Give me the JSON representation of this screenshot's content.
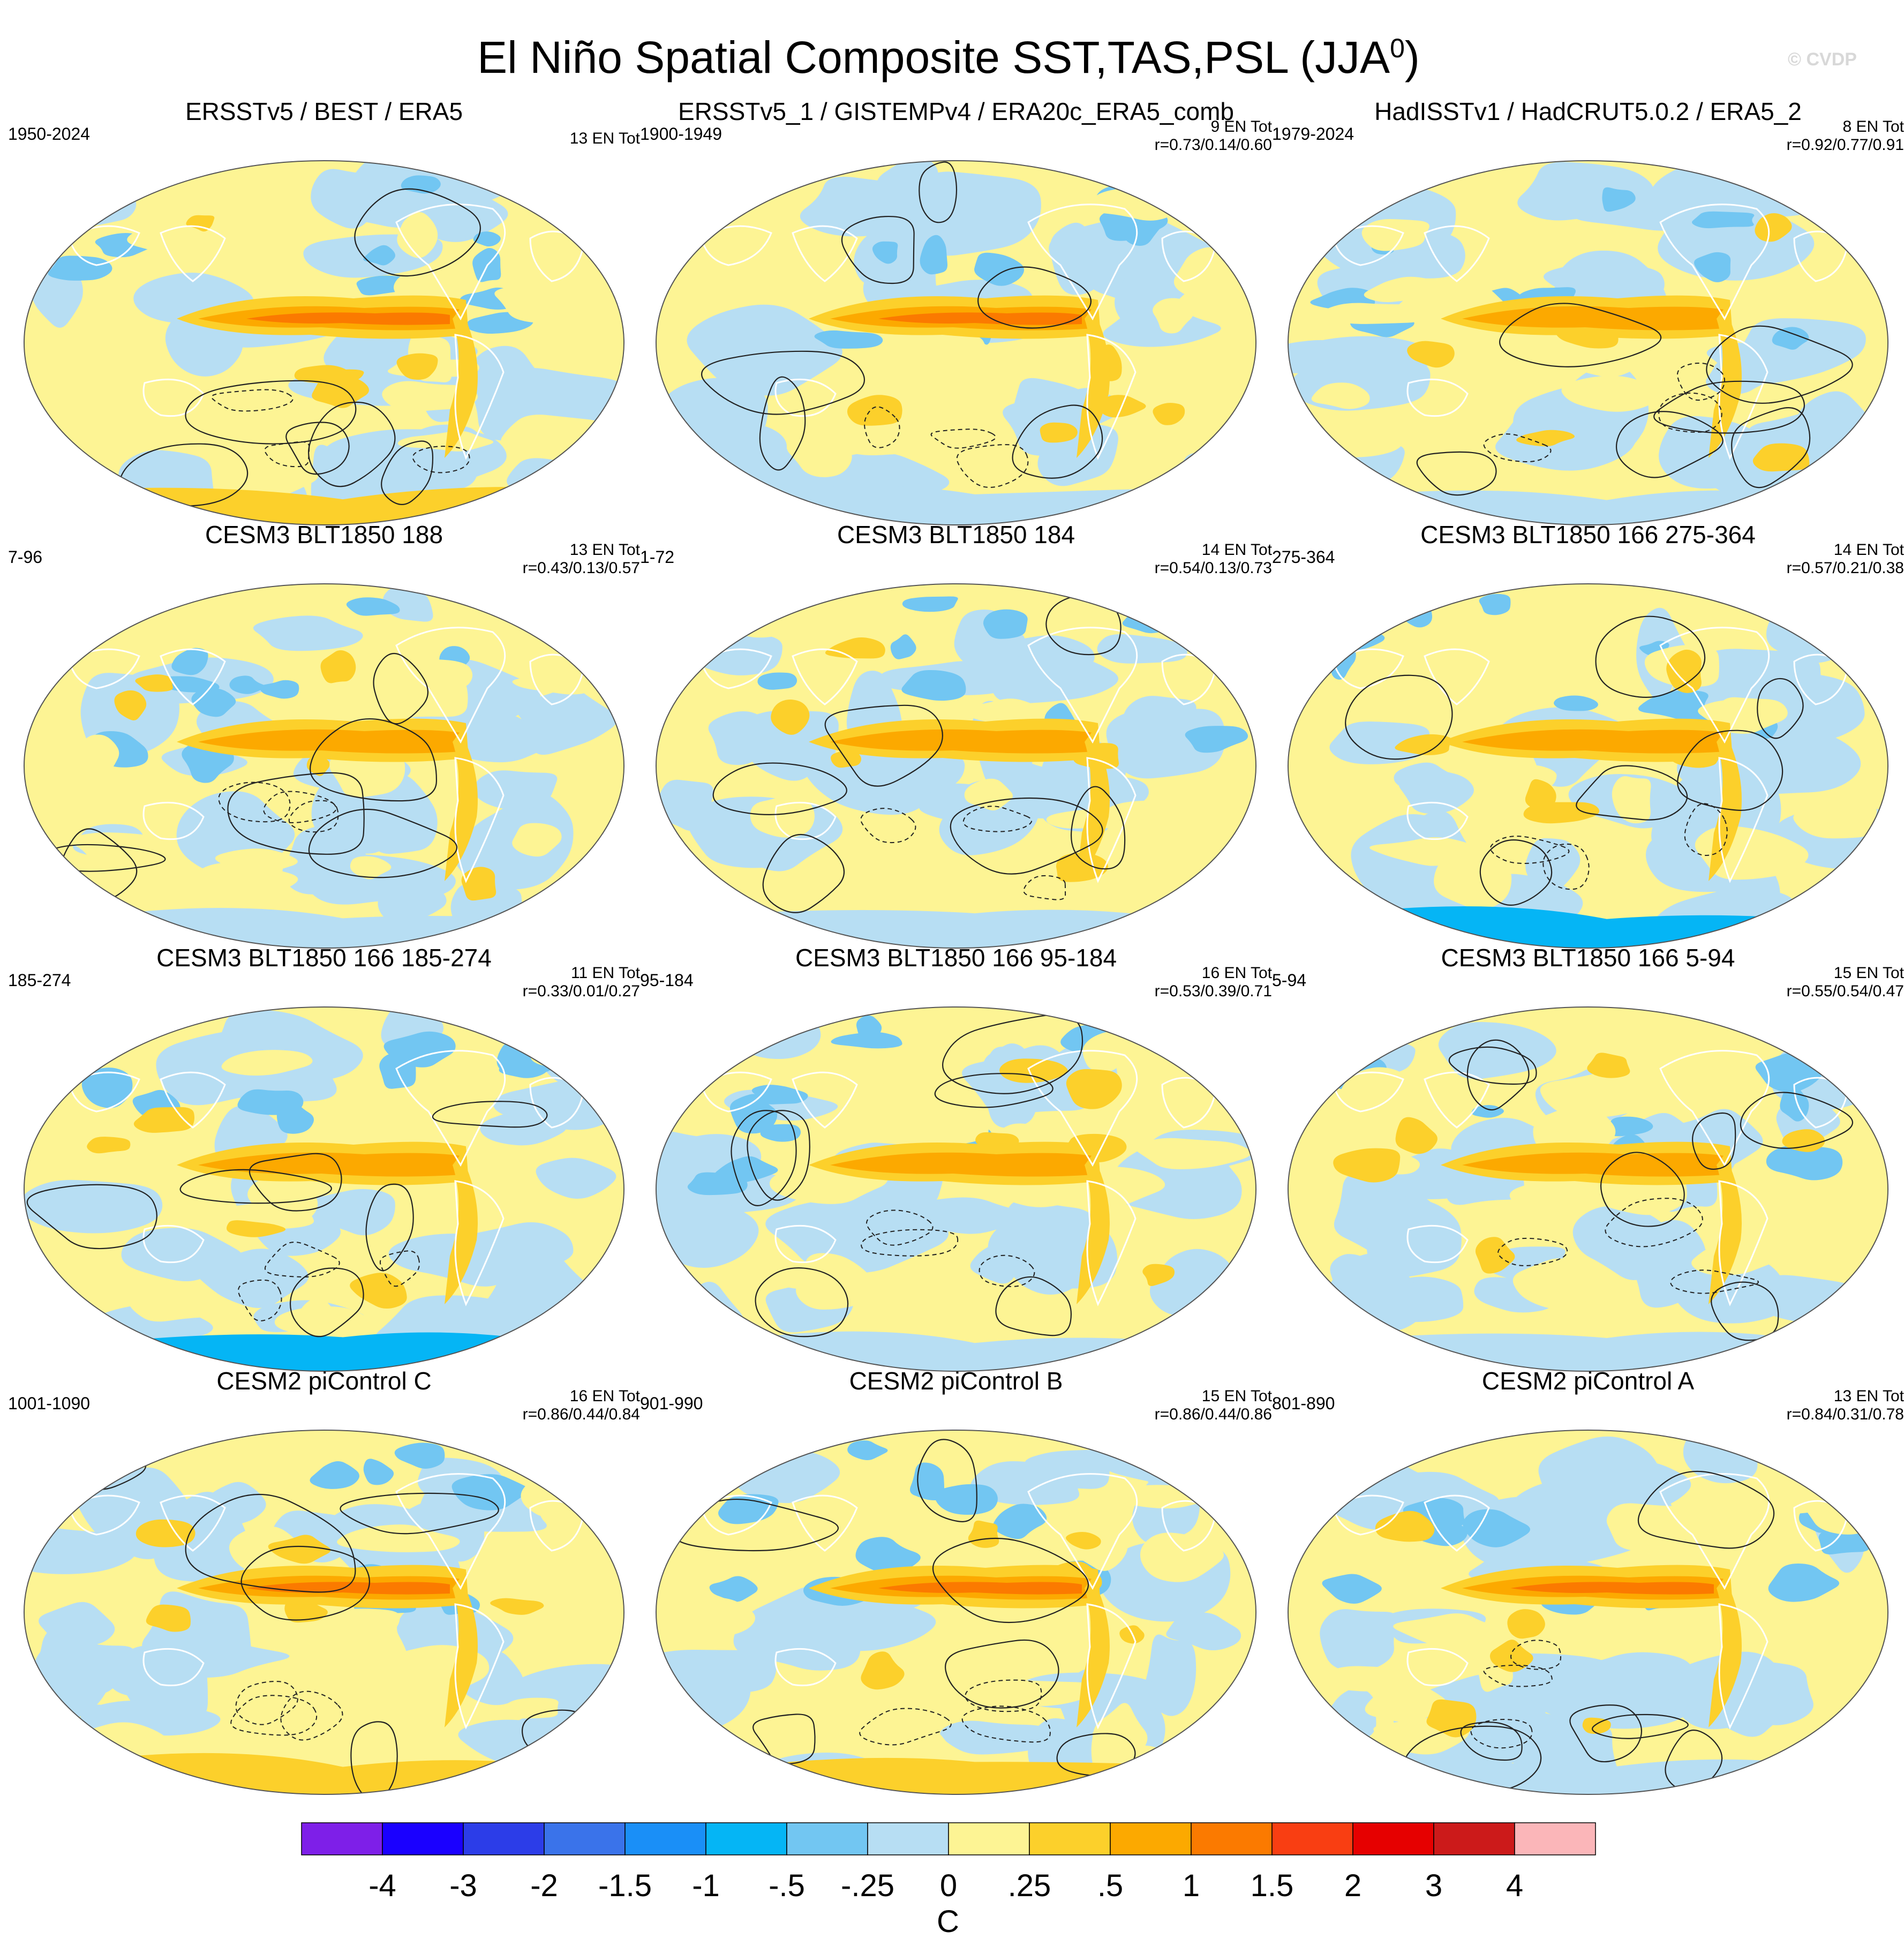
{
  "figure": {
    "title": "El Niño Spatial Composite SST,TAS,PSL (JJA",
    "title_superscript": "0",
    "title_close": ")",
    "credit": "© CVDP"
  },
  "panels": [
    {
      "title": "ERSSTv5 / BEST / ERA5",
      "years": "1950-2024",
      "count": "13 EN Tot",
      "r": "",
      "pattern": 0
    },
    {
      "title": "ERSSTv5_1 / GISTEMPv4 / ERA20c_ERA5_comb",
      "years": "1900-1949",
      "count": "9 EN Tot",
      "r": "r=0.73/0.14/0.60",
      "pattern": 1
    },
    {
      "title": "HadISSTv1 / HadCRUT5.0.2 / ERA5_2",
      "years": "1979-2024",
      "count": "8 EN Tot",
      "r": "r=0.92/0.77/0.91",
      "pattern": 2
    },
    {
      "title": "CESM3 BLT1850 188",
      "years": "7-96",
      "count": "13 EN Tot",
      "r": "r=0.43/0.13/0.57",
      "pattern": 3
    },
    {
      "title": "CESM3 BLT1850 184",
      "years": "1-72",
      "count": "14 EN Tot",
      "r": "r=0.54/0.13/0.73",
      "pattern": 4
    },
    {
      "title": "CESM3 BLT1850 166 275-364",
      "years": "275-364",
      "count": "14 EN Tot",
      "r": "r=0.57/0.21/0.38",
      "pattern": 5
    },
    {
      "title": "CESM3 BLT1850 166 185-274",
      "years": "185-274",
      "count": "11 EN Tot",
      "r": "r=0.33/0.01/0.27",
      "pattern": 6
    },
    {
      "title": "CESM3 BLT1850 166 95-184",
      "years": "95-184",
      "count": "16 EN Tot",
      "r": "r=0.53/0.39/0.71",
      "pattern": 7
    },
    {
      "title": "CESM3 BLT1850 166 5-94",
      "years": "5-94",
      "count": "15 EN Tot",
      "r": "r=0.55/0.54/0.47",
      "pattern": 8
    },
    {
      "title": "CESM2 piControl C",
      "years": "1001-1090",
      "count": "16 EN Tot",
      "r": "r=0.86/0.44/0.84",
      "pattern": 9
    },
    {
      "title": "CESM2 piControl B",
      "years": "901-990",
      "count": "15 EN Tot",
      "r": "r=0.86/0.44/0.86",
      "pattern": 10
    },
    {
      "title": "CESM2 piControl A",
      "years": "801-890",
      "count": "13 EN Tot",
      "r": "r=0.84/0.31/0.78",
      "pattern": 11
    }
  ],
  "colorbar": {
    "labels": [
      "-4",
      "-3",
      "-2",
      "-1.5",
      "-1",
      "-.5",
      "-.25",
      "0",
      ".25",
      ".5",
      "1",
      "1.5",
      "2",
      "3",
      "4"
    ],
    "unit": "C",
    "colors": [
      "#7e1fe8",
      "#1a00ff",
      "#2c3de8",
      "#3a73ea",
      "#1a8ff7",
      "#05b5f5",
      "#72c6f2",
      "#b7def3",
      "#fdf494",
      "#fcd02b",
      "#fca900",
      "#fb7a00",
      "#f93e12",
      "#e60000",
      "#cc1a1a",
      "#fbb6b9"
    ]
  }
}
